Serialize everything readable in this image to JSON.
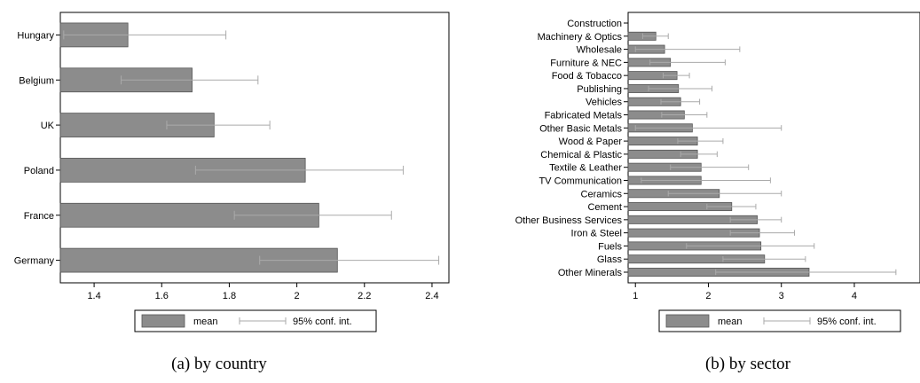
{
  "chart_data": [
    {
      "type": "bar",
      "orientation": "horizontal",
      "caption": "(a) by country",
      "categories": [
        "Hungary",
        "Belgium",
        "UK",
        "Poland",
        "France",
        "Germany"
      ],
      "series": [
        {
          "name": "mean",
          "values": [
            1.5,
            1.69,
            1.755,
            2.025,
            2.065,
            2.12
          ]
        },
        {
          "name": "95% conf. int.",
          "lower": [
            1.31,
            1.48,
            1.615,
            1.7,
            1.815,
            1.89
          ],
          "upper": [
            1.79,
            1.885,
            1.92,
            2.315,
            2.28,
            2.42
          ]
        }
      ],
      "xlim": [
        1.3,
        2.45
      ],
      "xticks": [
        "1.4",
        "1.6",
        "1.8",
        "2",
        "2.2",
        "2.4"
      ],
      "xlabel": "",
      "ylabel": "",
      "legend": {
        "entries": [
          "mean",
          "95% conf. int."
        ],
        "placement": "bottom"
      },
      "bar_color": "#8c8c8c",
      "ci_color": "#aaaaaa",
      "grid": false
    },
    {
      "type": "bar",
      "orientation": "horizontal",
      "caption": "(b) by sector",
      "categories": [
        "Construction",
        "Machinery & Optics",
        "Wholesale",
        "Furniture & NEC",
        "Food & Tobacco",
        "Publishing",
        "Vehicles",
        "Fabricated Metals",
        "Other Basic Metals",
        "Wood & Paper",
        "Chemical & Plastic",
        "Textile & Leather",
        "TV Communication",
        "Ceramics",
        "Cement",
        "Other Business Services",
        "Iron & Steel",
        "Fuels",
        "Glass",
        "Other Minerals"
      ],
      "series": [
        {
          "name": "mean",
          "values": [
            null,
            1.28,
            1.4,
            1.48,
            1.57,
            1.59,
            1.62,
            1.67,
            1.78,
            1.85,
            1.85,
            1.9,
            1.9,
            2.15,
            2.32,
            2.67,
            2.7,
            2.72,
            2.77,
            3.38
          ]
        },
        {
          "name": "95% conf. int.",
          "lower": [
            null,
            1.1,
            1.0,
            1.2,
            1.38,
            1.18,
            1.35,
            1.36,
            1.0,
            1.58,
            1.62,
            1.48,
            1.08,
            1.45,
            1.98,
            2.3,
            2.3,
            1.7,
            2.2,
            2.1
          ],
          "upper": [
            null,
            1.45,
            2.43,
            2.23,
            1.74,
            2.05,
            1.88,
            1.98,
            3.0,
            2.2,
            2.12,
            2.55,
            2.85,
            3.0,
            2.65,
            3.0,
            3.18,
            3.45,
            3.33,
            4.57
          ]
        }
      ],
      "xlim": [
        0.9,
        4.9
      ],
      "xticks": [
        "1",
        "2",
        "3",
        "4"
      ],
      "xlabel": "",
      "ylabel": "",
      "legend": {
        "entries": [
          "mean",
          "95% conf. int."
        ],
        "placement": "bottom"
      },
      "bar_color": "#8c8c8c",
      "ci_color": "#aaaaaa",
      "grid": false
    }
  ]
}
